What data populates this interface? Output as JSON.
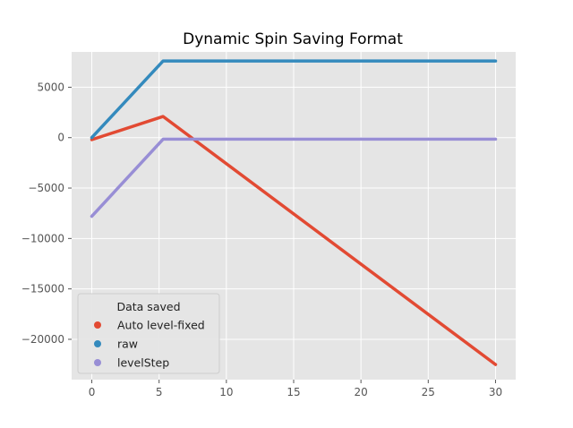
{
  "chart_data": {
    "type": "line",
    "title": "Dynamic Spin Saving Format",
    "xlabel": "",
    "ylabel": "",
    "xlim": [
      -1.5,
      31.5
    ],
    "ylim": [
      -24000,
      8500
    ],
    "x_ticks": [
      0,
      5,
      10,
      15,
      20,
      25,
      30
    ],
    "y_ticks": [
      5000,
      0,
      -5000,
      -10000,
      -15000,
      -20000
    ],
    "y_tick_labels": [
      "5000",
      "0",
      "−5000",
      "−10000",
      "−15000",
      "−20000"
    ],
    "grid": true,
    "legend": {
      "title": "Data saved",
      "placement": "lower-left"
    },
    "series": [
      {
        "name": "Auto level-fixed",
        "color": "#E24A33",
        "points": [
          [
            0,
            -200
          ],
          [
            5.3,
            2100
          ],
          [
            30,
            -22500
          ]
        ]
      },
      {
        "name": "raw",
        "color": "#348ABD",
        "points": [
          [
            0,
            0
          ],
          [
            5.3,
            7600
          ],
          [
            30,
            7600
          ]
        ]
      },
      {
        "name": "levelStep",
        "color": "#988ED5",
        "points": [
          [
            0,
            -7800
          ],
          [
            5.3,
            -150
          ],
          [
            30,
            -150
          ]
        ]
      }
    ]
  }
}
